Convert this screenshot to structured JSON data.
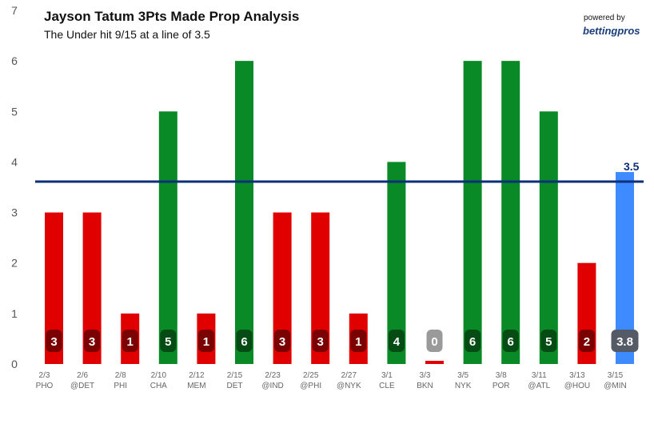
{
  "header": {
    "title": "Jayson Tatum 3Pts Made Prop Analysis",
    "subtitle": "The Under hit 9/15 at a line of 3.5",
    "powered_by": "powered by",
    "brand": "bettingpros"
  },
  "colors": {
    "over": "#0a8a26",
    "under": "#e00000",
    "projection": "#3d8bff",
    "line": "#0c2f7a",
    "gridline": "#e0e0e0",
    "axis_text": "#555555"
  },
  "chart_data": {
    "type": "bar",
    "title": "Jayson Tatum 3Pts Made Prop Analysis",
    "subtitle": "The Under hit 9/15 at a line of 3.5",
    "ylim": [
      0,
      7
    ],
    "yticks": [
      0,
      1,
      2,
      3,
      4,
      5,
      6,
      7
    ],
    "line": 3.5,
    "line_label": "3.5",
    "categories": [
      {
        "date": "2/3",
        "opp": "PHO",
        "value": 3,
        "label": "3",
        "result": "under"
      },
      {
        "date": "2/6",
        "opp": "@DET",
        "value": 3,
        "label": "3",
        "result": "under"
      },
      {
        "date": "2/8",
        "opp": "PHI",
        "value": 1,
        "label": "1",
        "result": "under"
      },
      {
        "date": "2/10",
        "opp": "CHA",
        "value": 5,
        "label": "5",
        "result": "over"
      },
      {
        "date": "2/12",
        "opp": "MEM",
        "value": 1,
        "label": "1",
        "result": "under"
      },
      {
        "date": "2/15",
        "opp": "DET",
        "value": 6,
        "label": "6",
        "result": "over"
      },
      {
        "date": "2/23",
        "opp": "@IND",
        "value": 3,
        "label": "3",
        "result": "under"
      },
      {
        "date": "2/25",
        "opp": "@PHI",
        "value": 3,
        "label": "3",
        "result": "under"
      },
      {
        "date": "2/27",
        "opp": "@NYK",
        "value": 1,
        "label": "1",
        "result": "under"
      },
      {
        "date": "3/1",
        "opp": "CLE",
        "value": 4,
        "label": "4",
        "result": "over"
      },
      {
        "date": "3/3",
        "opp": "BKN",
        "value": 0,
        "label": "0",
        "result": "zero"
      },
      {
        "date": "3/5",
        "opp": "NYK",
        "value": 6,
        "label": "6",
        "result": "over"
      },
      {
        "date": "3/8",
        "opp": "POR",
        "value": 6,
        "label": "6",
        "result": "over"
      },
      {
        "date": "3/11",
        "opp": "@ATL",
        "value": 5,
        "label": "5",
        "result": "over"
      },
      {
        "date": "3/13",
        "opp": "@HOU",
        "value": 2,
        "label": "2",
        "result": "under"
      },
      {
        "date": "3/15",
        "opp": "@MIN",
        "value": 3.8,
        "label": "3.8",
        "result": "projection"
      }
    ]
  }
}
